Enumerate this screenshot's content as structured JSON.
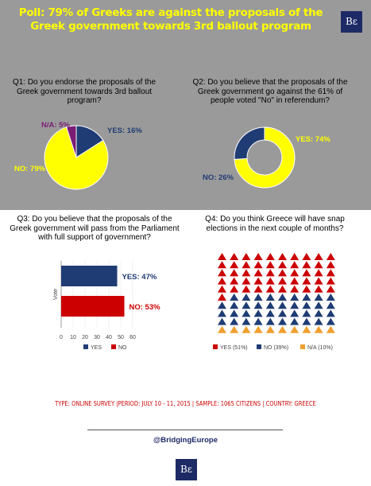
{
  "title": "Poll: 79% of Greeks are against the proposals of the Greek government towards 3rd ballout program",
  "logo_text": "Bε",
  "colors": {
    "yes": "#1f3c74",
    "no_yellow": "#ffff00",
    "no_red": "#cc0000",
    "na_purple": "#7a1d74",
    "na_orange": "#f0a030",
    "gray_bg": "#9a9a9a"
  },
  "q1": {
    "text": "Q1: Do you endorse the proposals of the Greek government towards 3rd ballout program?"
  },
  "q2": {
    "text": "Q2: Do you believe that the proposals of the Greek government go against the 61% of people voted \"No\" in referendum?"
  },
  "q3": {
    "text": "Q3: Do you believe that the proposals of the Greek government will pass from the Parliament with full support of government?"
  },
  "q4": {
    "text": "Q4: Do you think Greece will have snap elections in the next couple of months?"
  },
  "chart_data": [
    {
      "type": "pie",
      "slices": [
        {
          "label": "YES: 16%",
          "value": 16,
          "color": "#1f3c74"
        },
        {
          "label": "NO: 79%",
          "value": 79,
          "color": "#ffff00"
        },
        {
          "label": "N/A: 5%",
          "value": 5,
          "color": "#7a1d74"
        }
      ]
    },
    {
      "type": "pie",
      "donut": true,
      "slices": [
        {
          "label": "YES: 74%",
          "value": 74,
          "color": "#ffff00"
        },
        {
          "label": "NO: 26%",
          "value": 26,
          "color": "#1f3c74"
        }
      ]
    },
    {
      "type": "bar",
      "orientation": "horizontal",
      "ylabel": "Vote",
      "xlim": [
        0,
        60
      ],
      "xticks": [
        "0",
        "10",
        "20",
        "30",
        "40",
        "50",
        "60"
      ],
      "bars": [
        {
          "label": "YES: 47%",
          "value": 47,
          "color": "#1f3c74"
        },
        {
          "label": "NO: 53%",
          "value": 53,
          "color": "#cc0000"
        }
      ],
      "legend": [
        {
          "label": "YES",
          "color": "#1f3c74"
        },
        {
          "label": "NO",
          "color": "#cc0000"
        }
      ],
      "legend_position": "bottom"
    },
    {
      "type": "pictograph",
      "total": 100,
      "categories": [
        {
          "label": "YES (51%)",
          "value": 51,
          "color": "#cc0000"
        },
        {
          "label": "NO (39%)",
          "value": 39,
          "color": "#1f3c74"
        },
        {
          "label": "N/A (10%)",
          "value": 10,
          "color": "#f0a030"
        }
      ],
      "legend_position": "bottom"
    }
  ],
  "footer": "TYPE: ONLINE SURVEY  |PERIOD: JULY 10 - 11, 2015  | SAMPLE: 1065 CITIZENS | COUNTRY: GREECE",
  "handle": "@BridgingEurope"
}
